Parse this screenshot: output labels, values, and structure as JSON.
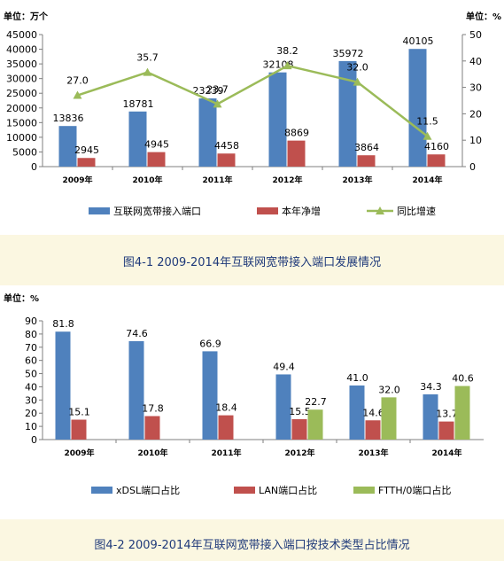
{
  "figures": [
    {
      "caption": "图4-1 2009-2014年互联网宽带接入端口发展情况"
    },
    {
      "caption": "图4-2 2009-2014年互联网宽带接入端口按技术类型占比情况"
    }
  ],
  "colors": {
    "blue": "#4f81bd",
    "red": "#c0504d",
    "green": "#9bbb59",
    "caption_band": "#fbf7e1",
    "caption_text": "#1f3a7a"
  },
  "chart_data": [
    {
      "type": "bar",
      "categories": [
        "2009年",
        "2010年",
        "2011年",
        "2012年",
        "2013年",
        "2014年"
      ],
      "y_unit_label": "单位：万个",
      "y2_unit_label": "单位：%",
      "ylim": [
        0,
        45000
      ],
      "yticks": [
        0,
        5000,
        10000,
        15000,
        20000,
        25000,
        30000,
        35000,
        40000,
        45000
      ],
      "y2lim": [
        0,
        50
      ],
      "y2ticks": [
        0,
        10,
        20,
        30,
        40,
        50
      ],
      "grid": false,
      "legend_position": "bottom",
      "series": [
        {
          "name": "互联网宽带接入端口",
          "kind": "bar",
          "axis": "left",
          "color": "#4f81bd",
          "values": [
            13836,
            18781,
            23239,
            32108,
            35972,
            40105
          ]
        },
        {
          "name": "本年净增",
          "kind": "bar",
          "axis": "left",
          "color": "#c0504d",
          "values": [
            2945,
            4945,
            4458,
            8869,
            3864,
            4160
          ]
        },
        {
          "name": "同比增速",
          "kind": "line",
          "axis": "right",
          "color": "#9bbb59",
          "values": [
            27.0,
            35.7,
            23.7,
            38.2,
            32.0,
            11.5
          ]
        }
      ],
      "label_texts": {
        "s0": [
          "13836",
          "18781",
          "23239",
          "32108",
          "35972",
          "40105"
        ],
        "s1": [
          "2945",
          "4945",
          "4458",
          "8869",
          "3864",
          "4160"
        ],
        "s2": [
          "27.0",
          "35.7",
          "23.7",
          "38.2",
          "32.0",
          "11.5"
        ]
      }
    },
    {
      "type": "bar",
      "categories": [
        "2009年",
        "2010年",
        "2011年",
        "2012年",
        "2013年",
        "2014年"
      ],
      "y_unit_label": "单位：%",
      "ylim": [
        0,
        90
      ],
      "yticks": [
        0,
        10,
        20,
        30,
        40,
        50,
        60,
        70,
        80,
        90
      ],
      "grid": false,
      "legend_position": "bottom",
      "series": [
        {
          "name": "xDSL端口占比",
          "kind": "bar",
          "color": "#4f81bd",
          "values": [
            81.8,
            74.6,
            66.9,
            49.4,
            41.0,
            34.3
          ]
        },
        {
          "name": "LAN端口占比",
          "kind": "bar",
          "color": "#c0504d",
          "values": [
            15.1,
            17.8,
            18.4,
            15.5,
            14.6,
            13.7
          ]
        },
        {
          "name": "FTTH/0端口占比",
          "kind": "bar",
          "color": "#9bbb59",
          "values": [
            null,
            null,
            null,
            22.7,
            32.0,
            40.6
          ]
        }
      ],
      "label_texts": {
        "s0": [
          "81.8",
          "74.6",
          "66.9",
          "49.4",
          "41.0",
          "34.3"
        ],
        "s1": [
          "15.1",
          "17.8",
          "18.4",
          "15.5",
          "14.6",
          "13.7"
        ],
        "s2": [
          "",
          "",
          "",
          "22.7",
          "32.0",
          "40.6"
        ]
      }
    }
  ]
}
